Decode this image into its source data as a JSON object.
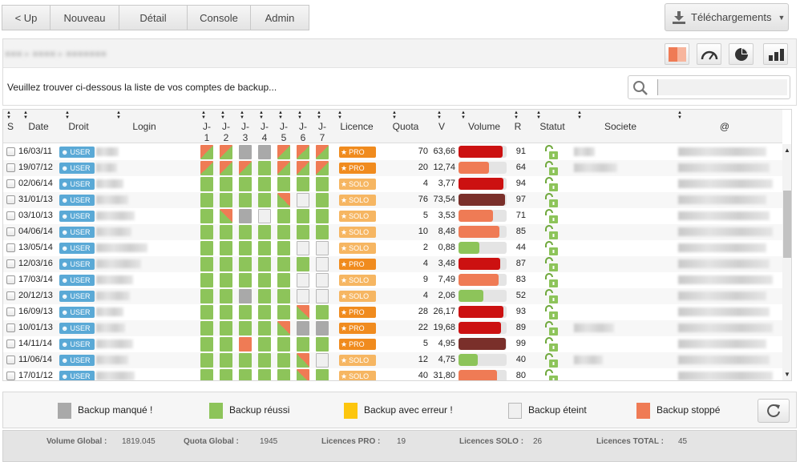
{
  "nav": [
    "< Up",
    "Nouveau",
    "Détail",
    "Console",
    "Admin"
  ],
  "downloads_label": "Téléchargements",
  "intro_text": "Veuillez trouver ci-dessous la liste de vos comptes de backup...",
  "toolbar_icons": [
    "split-view-icon",
    "gauge-icon",
    "pie-chart-icon",
    "bar-chart-icon"
  ],
  "columns": [
    "S",
    "Date",
    "Droit",
    "Login",
    "J-1",
    "J-2",
    "J-3",
    "J-4",
    "J-5",
    "J-6",
    "J-7",
    "Licence",
    "Quota",
    "V",
    "Volume",
    "R",
    "Statut",
    "Societe",
    "@"
  ],
  "status_colors": {
    "ok": "#8dc45a",
    "miss": "#a9a9a9",
    "error": "#fdc60e",
    "off": "#f0f0f0",
    "stop": "#ef7b55"
  },
  "rows": [
    {
      "date": "16/03/11",
      "droit": "USER",
      "jours": [
        "part",
        "part",
        "miss",
        "miss",
        "part",
        "part",
        "part"
      ],
      "licence": "PRO",
      "quota": "70",
      "v": "63,66",
      "volume_pct": 0.91,
      "r": "91"
    },
    {
      "date": "19/07/12",
      "droit": "USER",
      "jours": [
        "part",
        "part",
        "part",
        "ok",
        "part",
        "part",
        "part"
      ],
      "licence": "PRO",
      "quota": "20",
      "v": "12,74",
      "volume_pct": 0.64,
      "r": "64"
    },
    {
      "date": "02/06/14",
      "droit": "USER",
      "jours": [
        "ok",
        "ok",
        "ok",
        "ok",
        "ok",
        "ok",
        "ok"
      ],
      "licence": "SOLO",
      "quota": "4",
      "v": "3,77",
      "volume_pct": 0.94,
      "r": "94"
    },
    {
      "date": "31/01/13",
      "droit": "USER",
      "jours": [
        "ok",
        "ok",
        "ok",
        "ok",
        "part2",
        "off",
        "ok"
      ],
      "licence": "SOLO",
      "quota": "76",
      "v": "73,54",
      "volume_pct": 0.97,
      "r": "97"
    },
    {
      "date": "03/10/13",
      "droit": "USER",
      "jours": [
        "ok",
        "part2",
        "miss",
        "off",
        "ok",
        "ok",
        "ok"
      ],
      "licence": "SOLO",
      "quota": "5",
      "v": "3,53",
      "volume_pct": 0.71,
      "r": "71"
    },
    {
      "date": "04/06/14",
      "droit": "USER",
      "jours": [
        "ok",
        "ok",
        "ok",
        "ok",
        "ok",
        "ok",
        "ok"
      ],
      "licence": "SOLO",
      "quota": "10",
      "v": "8,48",
      "volume_pct": 0.85,
      "r": "85"
    },
    {
      "date": "13/05/14",
      "droit": "USER",
      "jours": [
        "ok",
        "ok",
        "ok",
        "ok",
        "ok",
        "off",
        "off"
      ],
      "licence": "SOLO",
      "quota": "2",
      "v": "0,88",
      "volume_pct": 0.44,
      "r": "44"
    },
    {
      "date": "12/03/16",
      "droit": "USER",
      "jours": [
        "ok",
        "ok",
        "ok",
        "ok",
        "ok",
        "ok",
        "off"
      ],
      "licence": "PRO",
      "quota": "4",
      "v": "3,48",
      "volume_pct": 0.87,
      "r": "87"
    },
    {
      "date": "17/03/14",
      "droit": "USER",
      "jours": [
        "ok",
        "ok",
        "ok",
        "ok",
        "ok",
        "off",
        "off"
      ],
      "licence": "SOLO",
      "quota": "9",
      "v": "7,49",
      "volume_pct": 0.83,
      "r": "83"
    },
    {
      "date": "20/12/13",
      "droit": "USER",
      "jours": [
        "ok",
        "ok",
        "miss",
        "ok",
        "ok",
        "off",
        "off"
      ],
      "licence": "SOLO",
      "quota": "4",
      "v": "2,06",
      "volume_pct": 0.52,
      "r": "52"
    },
    {
      "date": "16/09/13",
      "droit": "USER",
      "jours": [
        "ok",
        "ok",
        "ok",
        "ok",
        "ok",
        "part2",
        "ok"
      ],
      "licence": "PRO",
      "quota": "28",
      "v": "26,17",
      "volume_pct": 0.93,
      "r": "93"
    },
    {
      "date": "10/01/13",
      "droit": "USER",
      "jours": [
        "ok",
        "ok",
        "ok",
        "ok",
        "part2",
        "miss",
        "miss"
      ],
      "licence": "PRO",
      "quota": "22",
      "v": "19,68",
      "volume_pct": 0.89,
      "r": "89"
    },
    {
      "date": "14/11/14",
      "droit": "USER",
      "jours": [
        "ok",
        "ok",
        "stop",
        "ok",
        "ok",
        "ok",
        "ok"
      ],
      "licence": "PRO",
      "quota": "5",
      "v": "4,95",
      "volume_pct": 0.99,
      "r": "99"
    },
    {
      "date": "11/06/14",
      "droit": "USER",
      "jours": [
        "ok",
        "ok",
        "ok",
        "ok",
        "ok",
        "part2",
        "off"
      ],
      "licence": "SOLO",
      "quota": "12",
      "v": "4,75",
      "volume_pct": 0.4,
      "r": "40"
    },
    {
      "date": "17/01/12",
      "droit": "USER",
      "jours": [
        "ok",
        "ok",
        "ok",
        "ok",
        "ok",
        "part2",
        "ok"
      ],
      "licence": "SOLO",
      "quota": "40",
      "v": "31,80",
      "volume_pct": 0.8,
      "r": "80"
    }
  ],
  "legend": [
    {
      "label": "Backup manqué !",
      "status": "miss"
    },
    {
      "label": "Backup réussi",
      "status": "ok"
    },
    {
      "label": "Backup avec erreur !",
      "status": "error"
    },
    {
      "label": "Backup éteint",
      "status": "off"
    },
    {
      "label": "Backup stoppé",
      "status": "stop"
    }
  ],
  "footer": [
    {
      "label": "Volume Global :",
      "value": "1819.045"
    },
    {
      "label": "Quota Global :",
      "value": "1945"
    },
    {
      "label": "Licences PRO :",
      "value": "19"
    },
    {
      "label": "Licences SOLO :",
      "value": "26"
    },
    {
      "label": "Licences TOTAL :",
      "value": "45"
    }
  ]
}
